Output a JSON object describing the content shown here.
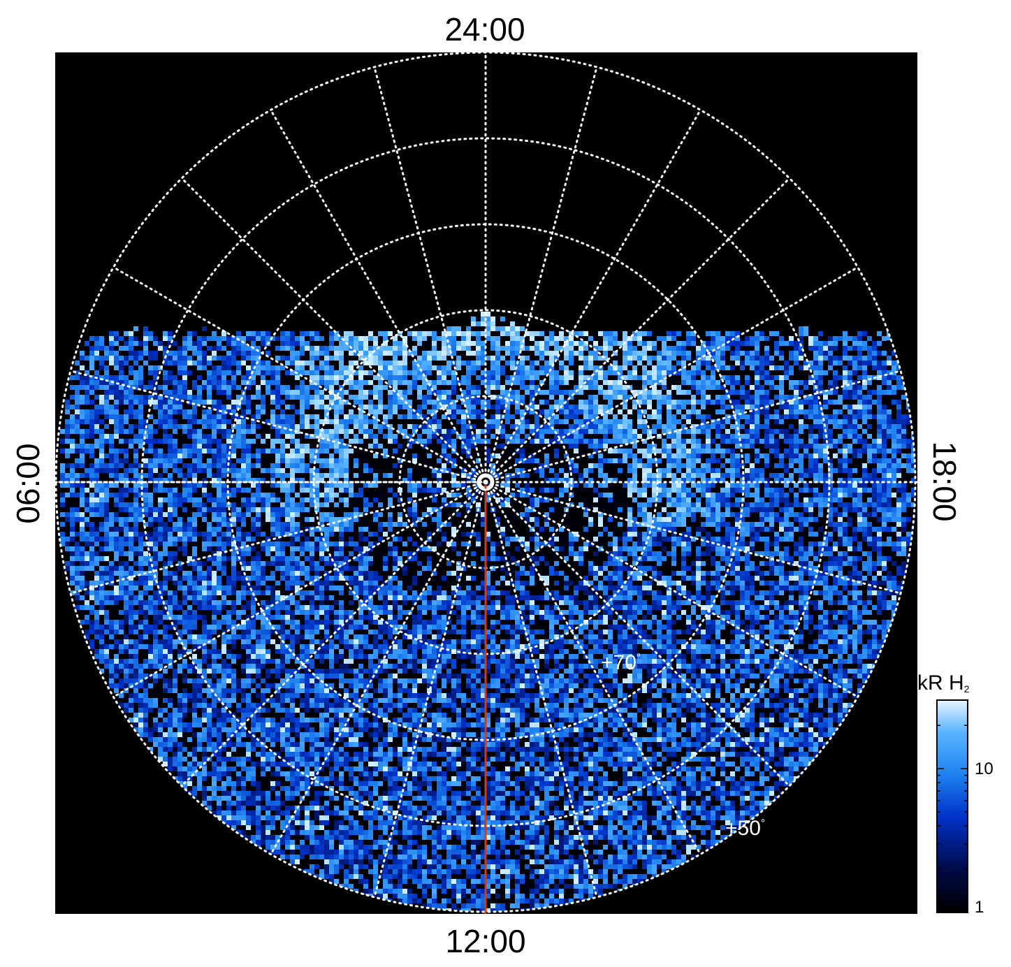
{
  "local_time_labels": {
    "top": "24:00",
    "bottom": "12:00",
    "left": "06:00",
    "right": "18:00"
  },
  "latitude_labels": {
    "inner": "+70",
    "outer": "+50",
    "degree_symbol": "°"
  },
  "colorbar": {
    "title": "kR H",
    "title_subscript": "2",
    "tick_labels": [
      "10",
      "1"
    ],
    "scale": "log",
    "range": [
      1,
      30
    ]
  },
  "colors": {
    "background": "#000000",
    "grid": "#ffffff",
    "meridian_line": "#d23a12",
    "colormap": [
      "#000000",
      "#000a46",
      "#0032c8",
      "#1e82f0",
      "#5ab4ff",
      "#d2f0ff"
    ]
  },
  "projection": "polar (north pole)",
  "pole_marker": "circle-dot"
}
